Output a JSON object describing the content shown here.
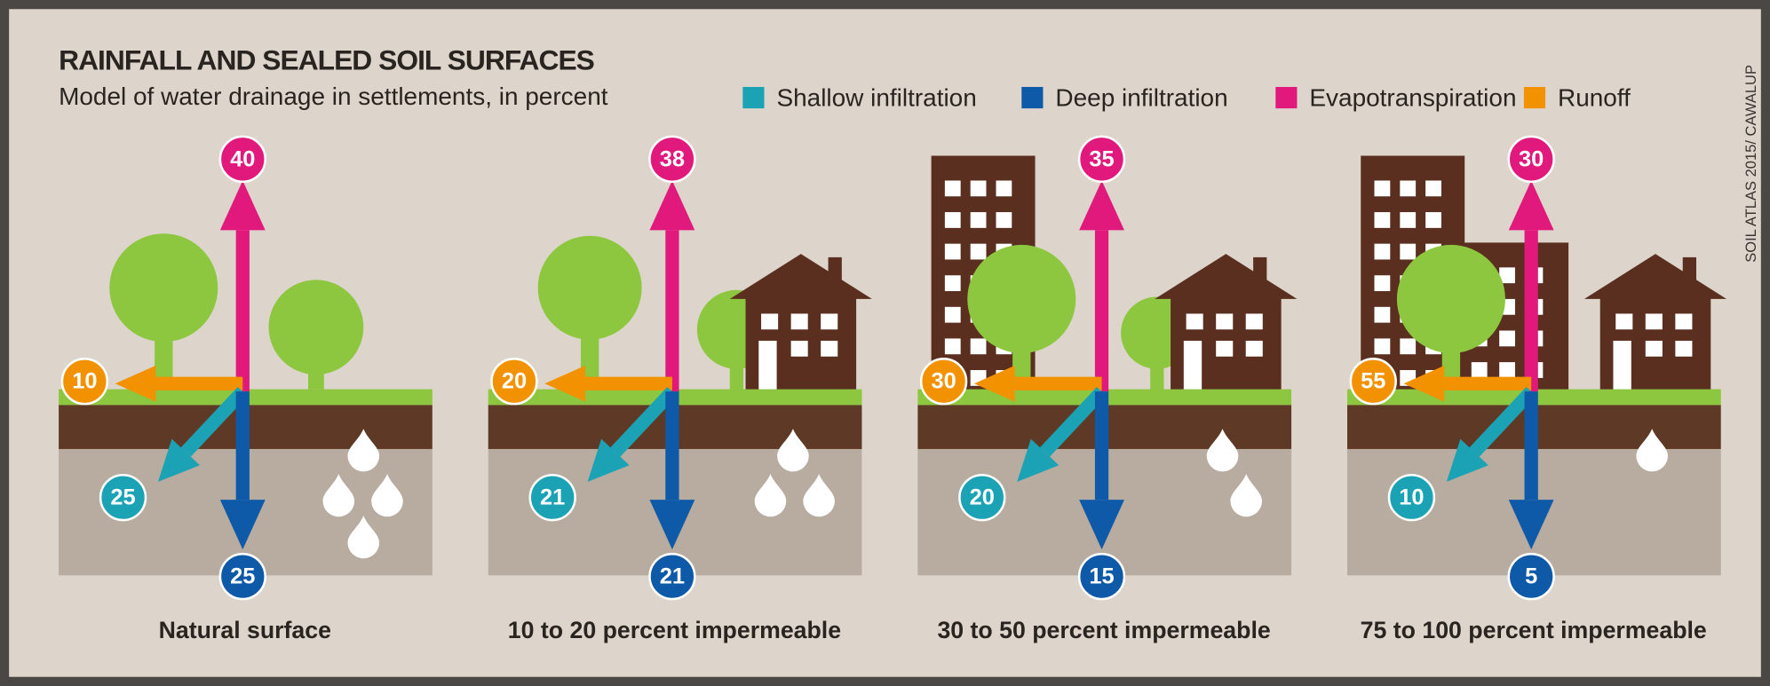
{
  "header": {
    "title": "RAINFALL AND SEALED SOIL SURFACES",
    "subtitle": "Model of water drainage in settlements, in percent",
    "credit": "SOIL ATLAS 2015/ CAWALUP"
  },
  "legend": [
    {
      "name": "Shallow infiltration",
      "color": "#1ba3b5"
    },
    {
      "name": "Deep infiltration",
      "color": "#0f5aa8"
    },
    {
      "name": "Evapotranspiration",
      "color": "#e2197c"
    },
    {
      "name": "Runoff",
      "color": "#f39200"
    }
  ],
  "panels": [
    {
      "label": "Natural surface",
      "evapotranspiration": 40,
      "runoff": 10,
      "shallow_infiltration": 25,
      "deep_infiltration": 25
    },
    {
      "label": "10 to 20 percent impermeable",
      "evapotranspiration": 38,
      "runoff": 20,
      "shallow_infiltration": 21,
      "deep_infiltration": 21
    },
    {
      "label": "30 to 50 percent impermeable",
      "evapotranspiration": 35,
      "runoff": 30,
      "shallow_infiltration": 20,
      "deep_infiltration": 15
    },
    {
      "label": "75 to 100 percent impermeable",
      "evapotranspiration": 30,
      "runoff": 55,
      "shallow_infiltration": 10,
      "deep_infiltration": 5
    }
  ]
}
